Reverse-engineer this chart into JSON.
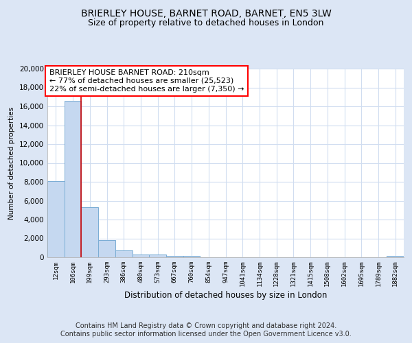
{
  "title": "BRIERLEY HOUSE, BARNET ROAD, BARNET, EN5 3LW",
  "subtitle": "Size of property relative to detached houses in London",
  "xlabel": "Distribution of detached houses by size in London",
  "ylabel": "Number of detached properties",
  "footnote1": "Contains HM Land Registry data © Crown copyright and database right 2024.",
  "footnote2": "Contains public sector information licensed under the Open Government Licence v3.0.",
  "annotation_title": "BRIERLEY HOUSE BARNET ROAD: 210sqm",
  "annotation_line2": "← 77% of detached houses are smaller (25,523)",
  "annotation_line3": "22% of semi-detached houses are larger (7,350) →",
  "bar_labels": [
    "12sqm",
    "106sqm",
    "199sqm",
    "293sqm",
    "386sqm",
    "480sqm",
    "573sqm",
    "667sqm",
    "760sqm",
    "854sqm",
    "947sqm",
    "1041sqm",
    "1134sqm",
    "1228sqm",
    "1321sqm",
    "1415sqm",
    "1508sqm",
    "1602sqm",
    "1695sqm",
    "1789sqm",
    "1882sqm"
  ],
  "bar_values": [
    8100,
    16600,
    5300,
    1850,
    730,
    310,
    260,
    170,
    160,
    0,
    0,
    0,
    0,
    0,
    0,
    0,
    0,
    0,
    0,
    0,
    170
  ],
  "bar_color": "#c5d8f0",
  "bar_edge_color": "#7aadd4",
  "red_line_x": 2.0,
  "ylim": [
    0,
    20000
  ],
  "yticks": [
    0,
    2000,
    4000,
    6000,
    8000,
    10000,
    12000,
    14000,
    16000,
    18000,
    20000
  ],
  "bg_color": "#dce6f5",
  "plot_bg_color": "#ffffff",
  "grid_color": "#d0ddf0",
  "title_fontsize": 10,
  "subtitle_fontsize": 9,
  "annotation_fontsize": 8,
  "footnote_fontsize": 7
}
